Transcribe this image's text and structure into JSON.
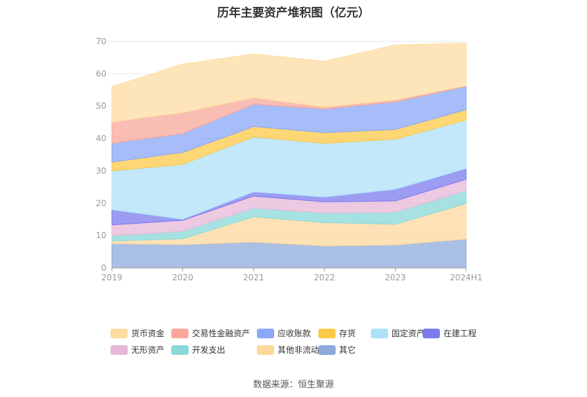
{
  "chart_data": {
    "type": "area",
    "title": "历年主要资产堆积图（亿元）",
    "source_note": "数据来源：恒生聚源",
    "x": [
      "2019",
      "2020",
      "2021",
      "2022",
      "2023",
      "2024H1"
    ],
    "ylim": [
      0,
      70
    ],
    "yticks": [
      0,
      10,
      20,
      30,
      40,
      50,
      60,
      70
    ],
    "grid": true,
    "legend_position": "bottom",
    "stacked": true,
    "series": [
      {
        "name": "其它",
        "color": "#8eaadb",
        "values": [
          7.5,
          7.2,
          8.0,
          6.8,
          7.1,
          8.9
        ]
      },
      {
        "name": "其他非流动资产",
        "color": "#fdd89c",
        "values": [
          0.8,
          1.8,
          7.8,
          7.2,
          6.4,
          11.0
        ]
      },
      {
        "name": "开发支出",
        "color": "#8ad8d8",
        "values": [
          1.7,
          2.3,
          2.7,
          3.0,
          3.7,
          4.0
        ]
      },
      {
        "name": "无形资产",
        "color": "#e8b8d8",
        "values": [
          3.3,
          3.4,
          3.7,
          3.4,
          3.5,
          3.5
        ]
      },
      {
        "name": "在建工程",
        "color": "#7b7bef",
        "values": [
          4.7,
          0.3,
          1.3,
          1.5,
          3.6,
          3.3
        ]
      },
      {
        "name": "固定资产",
        "color": "#aee0f8",
        "values": [
          12.0,
          17.0,
          17.0,
          16.6,
          15.5,
          15.0
        ]
      },
      {
        "name": "存货",
        "color": "#fcc947",
        "values": [
          2.7,
          3.7,
          3.2,
          3.3,
          3.0,
          3.2
        ]
      },
      {
        "name": "应收账款",
        "color": "#8aa7f8",
        "values": [
          5.8,
          5.8,
          6.9,
          7.3,
          8.5,
          7.2
        ]
      },
      {
        "name": "交易性金融资产",
        "color": "#f8a79a",
        "values": [
          6.6,
          6.5,
          2.0,
          0.6,
          0.6,
          0.2
        ]
      },
      {
        "name": "货币资金",
        "color": "#fddca2",
        "values": [
          10.9,
          15.0,
          13.5,
          14.2,
          17.0,
          13.2
        ]
      }
    ],
    "legend_order": [
      "货币资金",
      "交易性金融资产",
      "应收账款",
      "存货",
      "固定资产",
      "在建工程",
      "无形资产",
      "开发支出",
      "其他非流动资产",
      "其它"
    ]
  }
}
